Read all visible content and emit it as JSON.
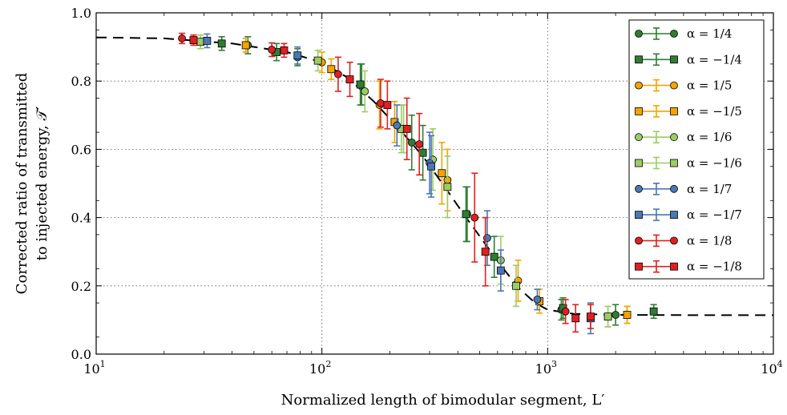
{
  "chart_data": {
    "type": "scatter",
    "xlabel": "Normalized length of bimodular segment, L′",
    "ylabel_line1": "Corrected ratio of transmitted",
    "ylabel_line2": "to injected energy, 𝒯′",
    "xscale": "log",
    "xlim": [
      10,
      10000
    ],
    "ylim": [
      0.0,
      1.0
    ],
    "x_tick_labels": [
      {
        "value": 10,
        "base": "10",
        "exp": "1"
      },
      {
        "value": 100,
        "base": "10",
        "exp": "2"
      },
      {
        "value": 1000,
        "base": "10",
        "exp": "3"
      },
      {
        "value": 10000,
        "base": "10",
        "exp": "4"
      }
    ],
    "y_ticks": [
      0.0,
      0.2,
      0.4,
      0.6,
      0.8,
      1.0
    ],
    "y_tick_labels": [
      "0.0",
      "0.2",
      "0.4",
      "0.6",
      "0.8",
      "1.0"
    ],
    "grid": "dotted at major ticks",
    "legend_position": "upper-right",
    "fit_curve": {
      "style": "dashed black",
      "x": [
        10,
        20,
        40,
        70,
        100,
        130,
        170,
        220,
        280,
        350,
        430,
        520,
        620,
        740,
        880,
        1000,
        1300,
        2000,
        5000,
        10000
      ],
      "y": [
        0.928,
        0.925,
        0.91,
        0.885,
        0.855,
        0.81,
        0.74,
        0.66,
        0.58,
        0.49,
        0.405,
        0.33,
        0.26,
        0.195,
        0.15,
        0.13,
        0.118,
        0.115,
        0.114,
        0.114
      ]
    },
    "series": [
      {
        "name": "α = 1/4",
        "marker": "circle",
        "color": "#2e7d32",
        "x": [
          47,
          78,
          150,
          250,
          440,
          1150,
          2000
        ],
        "y": [
          0.905,
          0.87,
          0.79,
          0.62,
          0.41,
          0.13,
          0.115
        ],
        "err": [
          0.025,
          0.025,
          0.06,
          0.08,
          0.08,
          0.03,
          0.03
        ]
      },
      {
        "name": "α = −1/4",
        "marker": "square",
        "color": "#2e7d32",
        "x": [
          36,
          63,
          148,
          280,
          435,
          580,
          1170,
          2950
        ],
        "y": [
          0.91,
          0.885,
          0.79,
          0.59,
          0.41,
          0.285,
          0.135,
          0.125
        ],
        "err": [
          0.02,
          0.025,
          0.06,
          0.08,
          0.08,
          0.06,
          0.03,
          0.02
        ]
      },
      {
        "name": "α = 1/5",
        "marker": "circle",
        "color": "#f5a300",
        "x": [
          100,
          180,
          360,
          740,
          2250
        ],
        "y": [
          0.855,
          0.73,
          0.51,
          0.215,
          0.115
        ],
        "err": [
          0.03,
          0.07,
          0.09,
          0.06,
          0.025
        ]
      },
      {
        "name": "α = −1/5",
        "marker": "square",
        "color": "#f5a300",
        "x": [
          46,
          110,
          210,
          340,
          920,
          2250
        ],
        "y": [
          0.905,
          0.835,
          0.68,
          0.53,
          0.155,
          0.115
        ],
        "err": [
          0.02,
          0.03,
          0.06,
          0.09,
          0.035,
          0.025
        ]
      },
      {
        "name": "α = 1/6",
        "marker": "circle",
        "color": "#9ccc65",
        "x": [
          155,
          230,
          310,
          620,
          1850
        ],
        "y": [
          0.77,
          0.66,
          0.57,
          0.275,
          0.11
        ],
        "err": [
          0.06,
          0.07,
          0.09,
          0.07,
          0.03
        ]
      },
      {
        "name": "α = −1/6",
        "marker": "square",
        "color": "#9ccc65",
        "x": [
          29,
          96,
          225,
          360,
          725,
          1850
        ],
        "y": [
          0.915,
          0.86,
          0.66,
          0.49,
          0.2,
          0.11
        ],
        "err": [
          0.02,
          0.03,
          0.07,
          0.09,
          0.06,
          0.03
        ]
      },
      {
        "name": "α = 1/7",
        "marker": "circle",
        "color": "#4a77b5",
        "x": [
          215,
          300,
          540,
          900
        ],
        "y": [
          0.67,
          0.56,
          0.34,
          0.16
        ],
        "err": [
          0.06,
          0.09,
          0.08,
          0.03
        ]
      },
      {
        "name": "α = −1/7",
        "marker": "square",
        "color": "#4a77b5",
        "x": [
          31,
          78,
          305,
          620,
          1550
        ],
        "y": [
          0.918,
          0.875,
          0.55,
          0.245,
          0.105
        ],
        "err": [
          0.02,
          0.025,
          0.09,
          0.06,
          0.045
        ]
      },
      {
        "name": "α = 1/8",
        "marker": "circle",
        "color": "#e02020",
        "x": [
          24,
          60,
          118,
          182,
          270,
          475,
          1200
        ],
        "y": [
          0.925,
          0.892,
          0.82,
          0.735,
          0.615,
          0.4,
          0.125
        ],
        "err": [
          0.015,
          0.02,
          0.05,
          0.07,
          0.09,
          0.13,
          0.035
        ]
      },
      {
        "name": "α = −1/8",
        "marker": "square",
        "color": "#e02020",
        "x": [
          27,
          68,
          133,
          195,
          238,
          530,
          1330,
          1550
        ],
        "y": [
          0.92,
          0.89,
          0.805,
          0.73,
          0.66,
          0.3,
          0.105,
          0.11
        ],
        "err": [
          0.015,
          0.02,
          0.05,
          0.07,
          0.09,
          0.1,
          0.04,
          0.035
        ]
      }
    ]
  }
}
